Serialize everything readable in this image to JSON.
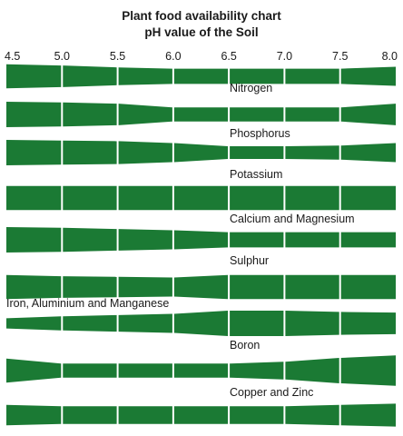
{
  "chart_data": {
    "type": "area",
    "title": "Plant food availability chart",
    "subtitle": "pH value of the Soil",
    "xlabel": "",
    "ylabel": "",
    "x_ticks": [
      "4.5",
      "5.0",
      "5.5",
      "6.0",
      "6.5",
      "7.0",
      "7.5",
      "8.0"
    ],
    "xlim": [
      4.5,
      8.0
    ],
    "sample_ph": [
      4.5,
      5.0,
      5.5,
      6.0,
      6.5,
      7.0,
      7.5,
      8.0
    ],
    "band_color": "#1b7a34",
    "legend": "none",
    "grid": false,
    "series": [
      {
        "name": "Nitrogen",
        "values": [
          0.95,
          0.85,
          0.7,
          0.6,
          0.6,
          0.6,
          0.6,
          0.75
        ]
      },
      {
        "name": "Phosphorus",
        "values": [
          1.0,
          0.95,
          0.85,
          0.55,
          0.55,
          0.55,
          0.55,
          0.85
        ]
      },
      {
        "name": "Potassium",
        "values": [
          1.0,
          0.95,
          0.9,
          0.75,
          0.5,
          0.5,
          0.55,
          0.75
        ]
      },
      {
        "name": "Calcium and Magnesium",
        "values": [
          0.95,
          0.95,
          0.95,
          0.95,
          0.95,
          0.95,
          0.95,
          0.95
        ]
      },
      {
        "name": "Sulphur",
        "values": [
          1.0,
          0.95,
          0.85,
          0.75,
          0.6,
          0.6,
          0.6,
          0.6
        ]
      },
      {
        "name": "Iron, Aluminium and Manganese",
        "values": [
          0.95,
          0.85,
          0.8,
          0.75,
          0.95,
          0.95,
          0.95,
          0.95
        ]
      },
      {
        "name": "Boron",
        "values": [
          0.4,
          0.55,
          0.65,
          0.75,
          1.0,
          1.0,
          0.9,
          0.85
        ]
      },
      {
        "name": "Copper and Zinc",
        "values": [
          0.95,
          0.55,
          0.55,
          0.55,
          0.55,
          0.7,
          1.0,
          1.2
        ]
      },
      {
        "name": "",
        "values": [
          0.8,
          0.7,
          0.7,
          0.7,
          0.7,
          0.7,
          0.8,
          0.9
        ]
      }
    ]
  }
}
